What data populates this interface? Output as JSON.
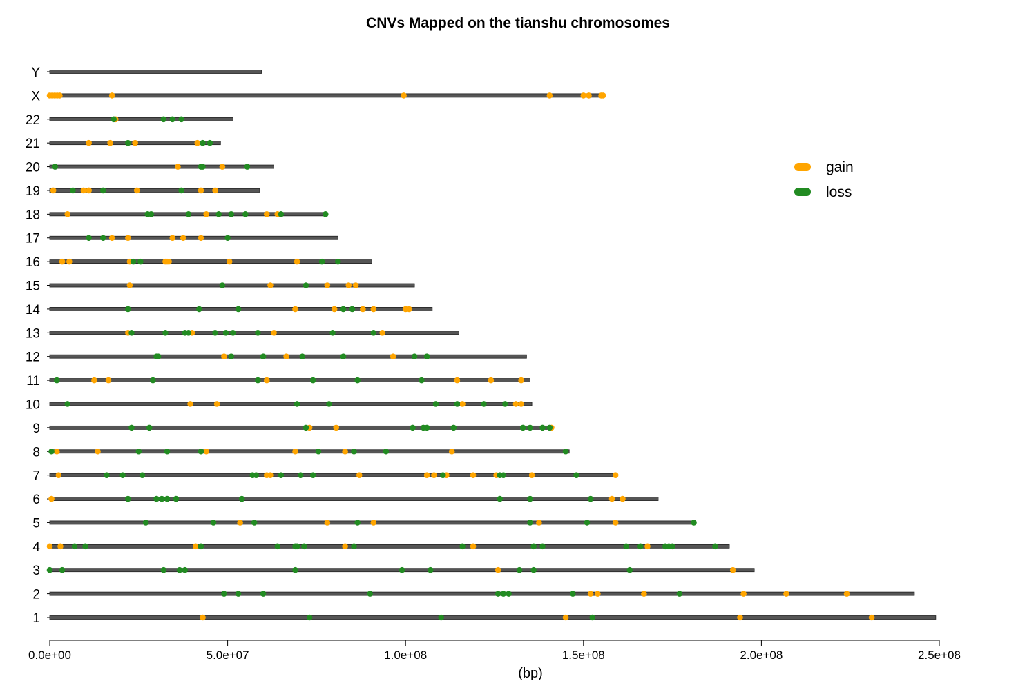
{
  "chart_data": {
    "type": "scatter",
    "title": "CNVs Mapped on the tianshu chromosomes",
    "xlabel": "(bp)",
    "ylabel": "",
    "xlim": [
      0,
      250000000
    ],
    "x_ticks": [
      "0.0e+00",
      "5.0e+07",
      "1.0e+08",
      "1.5e+08",
      "2.0e+08",
      "2.5e+08"
    ],
    "x_tick_values": [
      0,
      50000000,
      100000000,
      150000000,
      200000000,
      250000000
    ],
    "legend": {
      "position": "right",
      "entries": [
        {
          "label": "gain",
          "color": "#FFA500"
        },
        {
          "label": "loss",
          "color": "#228B22"
        }
      ]
    },
    "colors": {
      "gain": "#FFA500",
      "loss": "#228B22",
      "chromosome": "#555555"
    },
    "chromosomes": [
      {
        "name": "1",
        "length": 249000000,
        "gain": [
          43000000,
          145000000,
          194000000,
          231000000
        ],
        "loss": [
          73000000,
          110000000,
          152500000
        ]
      },
      {
        "name": "2",
        "length": 243000000,
        "gain": [
          152000000,
          154000000,
          167000000,
          195000000,
          207000000,
          224000000
        ],
        "loss": [
          49000000,
          53000000,
          60000000,
          90000000,
          126000000,
          127500000,
          129000000,
          147000000,
          177000000
        ]
      },
      {
        "name": "3",
        "length": 198000000,
        "gain": [
          126000000,
          192000000
        ],
        "loss": [
          0,
          3500000,
          32000000,
          36500000,
          38000000,
          69000000,
          99000000,
          107000000,
          132000000,
          136000000,
          163000000
        ]
      },
      {
        "name": "4",
        "length": 191000000,
        "gain": [
          0,
          3000000,
          41000000,
          83000000,
          119000000,
          168000000
        ],
        "loss": [
          7000000,
          10000000,
          42500000,
          64000000,
          69000000,
          69500000,
          71500000,
          85500000,
          116000000,
          136000000,
          138500000,
          162000000,
          166000000,
          173000000,
          174000000,
          175000000,
          187000000
        ]
      },
      {
        "name": "5",
        "length": 181000000,
        "gain": [
          53500000,
          78000000,
          91000000,
          137500000,
          159000000
        ],
        "loss": [
          27000000,
          46000000,
          57500000,
          86500000,
          135000000,
          151000000,
          181000000
        ]
      },
      {
        "name": "6",
        "length": 171000000,
        "gain": [
          500000,
          158000000,
          161000000
        ],
        "loss": [
          22000000,
          30000000,
          31500000,
          33000000,
          35500000,
          54000000,
          126500000,
          135000000,
          152000000
        ]
      },
      {
        "name": "7",
        "length": 159000000,
        "gain": [
          2500000,
          61000000,
          62000000,
          87000000,
          106000000,
          108000000,
          111500000,
          119000000,
          125500000,
          135500000,
          159000000
        ],
        "loss": [
          16000000,
          20500000,
          26000000,
          57000000,
          58000000,
          65000000,
          70500000,
          74000000,
          110500000,
          126500000,
          127500000,
          148000000
        ]
      },
      {
        "name": "8",
        "length": 146000000,
        "gain": [
          2000000,
          13500000,
          44000000,
          69000000,
          83000000,
          113000000
        ],
        "loss": [
          500000,
          25000000,
          33000000,
          42500000,
          75500000,
          85500000,
          94500000,
          145000000
        ]
      },
      {
        "name": "9",
        "length": 141000000,
        "gain": [
          73000000,
          80500000,
          141000000
        ],
        "loss": [
          23000000,
          28000000,
          72000000,
          102000000,
          105000000,
          106000000,
          113500000,
          133000000,
          135000000,
          138500000,
          140500000
        ]
      },
      {
        "name": "10",
        "length": 135500000,
        "gain": [
          39500000,
          47000000,
          116000000,
          131000000,
          132500000
        ],
        "loss": [
          5000000,
          69500000,
          78500000,
          108500000,
          114500000,
          122000000,
          128000000
        ]
      },
      {
        "name": "11",
        "length": 135000000,
        "gain": [
          12500000,
          16500000,
          61000000,
          114500000,
          124000000,
          132500000
        ],
        "loss": [
          2000000,
          29000000,
          58500000,
          74000000,
          86500000,
          104500000
        ]
      },
      {
        "name": "12",
        "length": 134000000,
        "gain": [
          49000000,
          66500000,
          96500000
        ],
        "loss": [
          30000000,
          30500000,
          51000000,
          60000000,
          71000000,
          82500000,
          102500000,
          106000000
        ]
      },
      {
        "name": "13",
        "length": 115000000,
        "gain": [
          22000000,
          40000000,
          63000000,
          93500000
        ],
        "loss": [
          23000000,
          32500000,
          38000000,
          39000000,
          46500000,
          49500000,
          51500000,
          58500000,
          79500000,
          91000000
        ]
      },
      {
        "name": "14",
        "length": 107500000,
        "gain": [
          69000000,
          80000000,
          88000000,
          91000000,
          100000000,
          101000000
        ],
        "loss": [
          22000000,
          42000000,
          53000000,
          82500000,
          85000000
        ]
      },
      {
        "name": "15",
        "length": 102500000,
        "gain": [
          22500000,
          62000000,
          78000000,
          84000000,
          86000000
        ],
        "loss": [
          48500000,
          72000000
        ]
      },
      {
        "name": "16",
        "length": 90500000,
        "gain": [
          3500000,
          5500000,
          22500000,
          32500000,
          33000000,
          33500000,
          50500000,
          69500000
        ],
        "loss": [
          23500000,
          25500000,
          76500000,
          81000000
        ]
      },
      {
        "name": "17",
        "length": 81000000,
        "gain": [
          17500000,
          22000000,
          34500000,
          37500000,
          42500000
        ],
        "loss": [
          11000000,
          15000000,
          50000000
        ]
      },
      {
        "name": "18",
        "length": 78000000,
        "gain": [
          5000000,
          44000000,
          61000000,
          64000000
        ],
        "loss": [
          27500000,
          28500000,
          39000000,
          47500000,
          51000000,
          55000000,
          65000000,
          77500000
        ]
      },
      {
        "name": "19",
        "length": 59000000,
        "gain": [
          1000000,
          9500000,
          11000000,
          24500000,
          42500000,
          46500000
        ],
        "loss": [
          6500000,
          15000000,
          37000000
        ]
      },
      {
        "name": "20",
        "length": 63000000,
        "gain": [
          36000000,
          48500000
        ],
        "loss": [
          1500000,
          42500000,
          43000000,
          55500000
        ]
      },
      {
        "name": "21",
        "length": 48000000,
        "gain": [
          11000000,
          17000000,
          24000000,
          41500000
        ],
        "loss": [
          22000000,
          43000000,
          45000000
        ]
      },
      {
        "name": "22",
        "length": 51500000,
        "gain": [
          18500000
        ],
        "loss": [
          18000000,
          32000000,
          34500000,
          37000000
        ]
      },
      {
        "name": "X",
        "length": 155500000,
        "gain": [
          0,
          700000,
          1400000,
          2100000,
          2800000,
          17500000,
          99500000,
          140500000,
          150000000,
          151500000,
          155000000,
          155500000
        ],
        "loss": []
      },
      {
        "name": "Y",
        "length": 59500000,
        "gain": [],
        "loss": []
      }
    ]
  }
}
